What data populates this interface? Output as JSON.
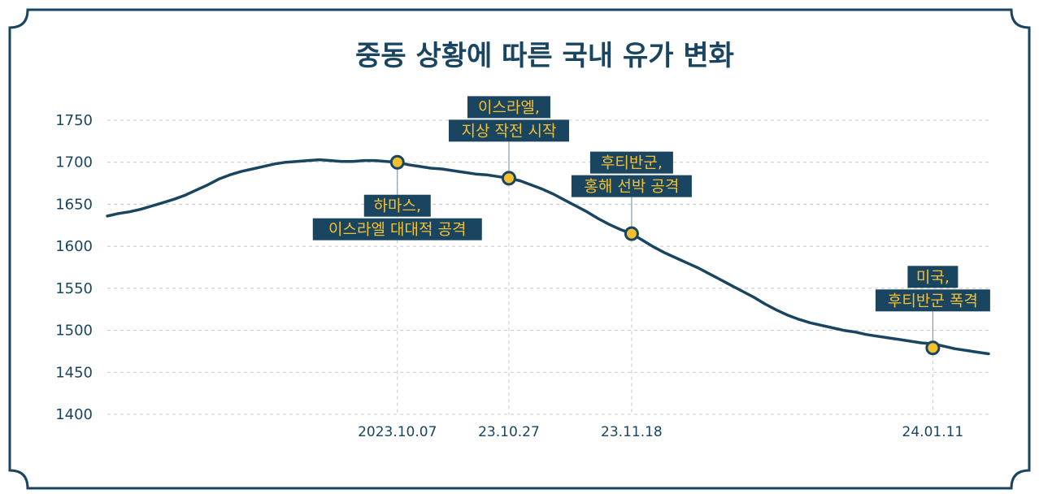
{
  "chart_data": {
    "type": "line",
    "title": "중동 상황에 따른 국내 유가 변화",
    "xlabel": "",
    "ylabel": "",
    "ylim": [
      1400,
      1750
    ],
    "yticks": [
      1400,
      1450,
      1500,
      1550,
      1600,
      1650,
      1700,
      1750
    ],
    "grid": true,
    "legend": "none",
    "colors": {
      "line": "#1a4560",
      "marker": "#f5c030",
      "label_bg": "#1a4560",
      "label_text": "#f5c030",
      "grid": "#c8c8c8",
      "frame": "#1a4560"
    },
    "x": [
      "2023.08.16",
      "2023.08.18",
      "2023.08.20",
      "2023.08.22",
      "2023.08.24",
      "2023.08.26",
      "2023.08.28",
      "2023.08.30",
      "2023.09.01",
      "2023.09.03",
      "2023.09.05",
      "2023.09.07",
      "2023.09.09",
      "2023.09.11",
      "2023.09.13",
      "2023.09.15",
      "2023.09.17",
      "2023.09.19",
      "2023.09.21",
      "2023.09.23",
      "2023.09.25",
      "2023.09.27",
      "2023.09.29",
      "2023.10.01",
      "2023.10.03",
      "2023.10.05",
      "2023.10.07",
      "2023.10.09",
      "2023.10.11",
      "2023.10.13",
      "2023.10.15",
      "2023.10.17",
      "2023.10.19",
      "2023.10.21",
      "2023.10.23",
      "2023.10.25",
      "2023.10.27",
      "2023.10.29",
      "2023.10.31",
      "2023.11.02",
      "2023.11.04",
      "2023.11.06",
      "2023.11.08",
      "2023.11.10",
      "2023.11.12",
      "2023.11.14",
      "2023.11.16",
      "2023.11.18",
      "2023.11.20",
      "2023.11.22",
      "2023.11.24",
      "2023.11.26",
      "2023.11.28",
      "2023.11.30",
      "2023.12.02",
      "2023.12.04",
      "2023.12.06",
      "2023.12.08",
      "2023.12.10",
      "2023.12.12",
      "2023.12.14",
      "2023.12.16",
      "2023.12.18",
      "2023.12.20",
      "2023.12.22",
      "2023.12.24",
      "2023.12.26",
      "2023.12.28",
      "2023.12.30",
      "2024.01.01",
      "2024.01.03",
      "2024.01.05",
      "2024.01.07",
      "2024.01.09",
      "2024.01.11",
      "2024.01.13",
      "2024.01.15",
      "2024.01.17",
      "2024.01.19",
      "2024.01.21"
    ],
    "series": [
      {
        "values": [
          1636,
          1639,
          1641,
          1644,
          1648,
          1652,
          1656,
          1661,
          1667,
          1673,
          1680,
          1685,
          1689,
          1692,
          1695,
          1698,
          1700,
          1701,
          1702,
          1703,
          1702,
          1701,
          1701,
          1702,
          1702,
          1701,
          1700,
          1697,
          1695,
          1693,
          1692,
          1690,
          1688,
          1686,
          1685,
          1683,
          1681,
          1678,
          1673,
          1668,
          1662,
          1655,
          1648,
          1641,
          1633,
          1626,
          1620,
          1615,
          1607,
          1599,
          1592,
          1586,
          1580,
          1574,
          1567,
          1560,
          1553,
          1546,
          1539,
          1531,
          1524,
          1518,
          1513,
          1509,
          1506,
          1503,
          1500,
          1498,
          1495,
          1493,
          1491,
          1489,
          1487,
          1485,
          1484,
          1481,
          1478,
          1476,
          1474,
          1472
        ]
      }
    ],
    "xtick_labels": [
      {
        "x": "2023.10.07",
        "label": "2023.10.07"
      },
      {
        "x": "2023.10.27",
        "label": "23.10.27"
      },
      {
        "x": "2023.11.18",
        "label": "23.11.18"
      },
      {
        "x": "2024.01.11",
        "label": "24.01.11"
      }
    ],
    "annotations": [
      {
        "x": "2023.10.07",
        "y": 1700,
        "position": "below",
        "lines": [
          "하마스,",
          "이스라엘 대대적 공격"
        ]
      },
      {
        "x": "2023.10.27",
        "y": 1681,
        "position": "above",
        "lines": [
          "이스라엘,",
          "지상 작전 시작"
        ]
      },
      {
        "x": "2023.11.18",
        "y": 1615,
        "position": "above",
        "lines": [
          "후티반군,",
          "홍해 선박 공격"
        ]
      },
      {
        "x": "2024.01.11",
        "y": 1479,
        "position": "above",
        "lines": [
          "미국,",
          "후티반군 폭격"
        ]
      }
    ]
  }
}
